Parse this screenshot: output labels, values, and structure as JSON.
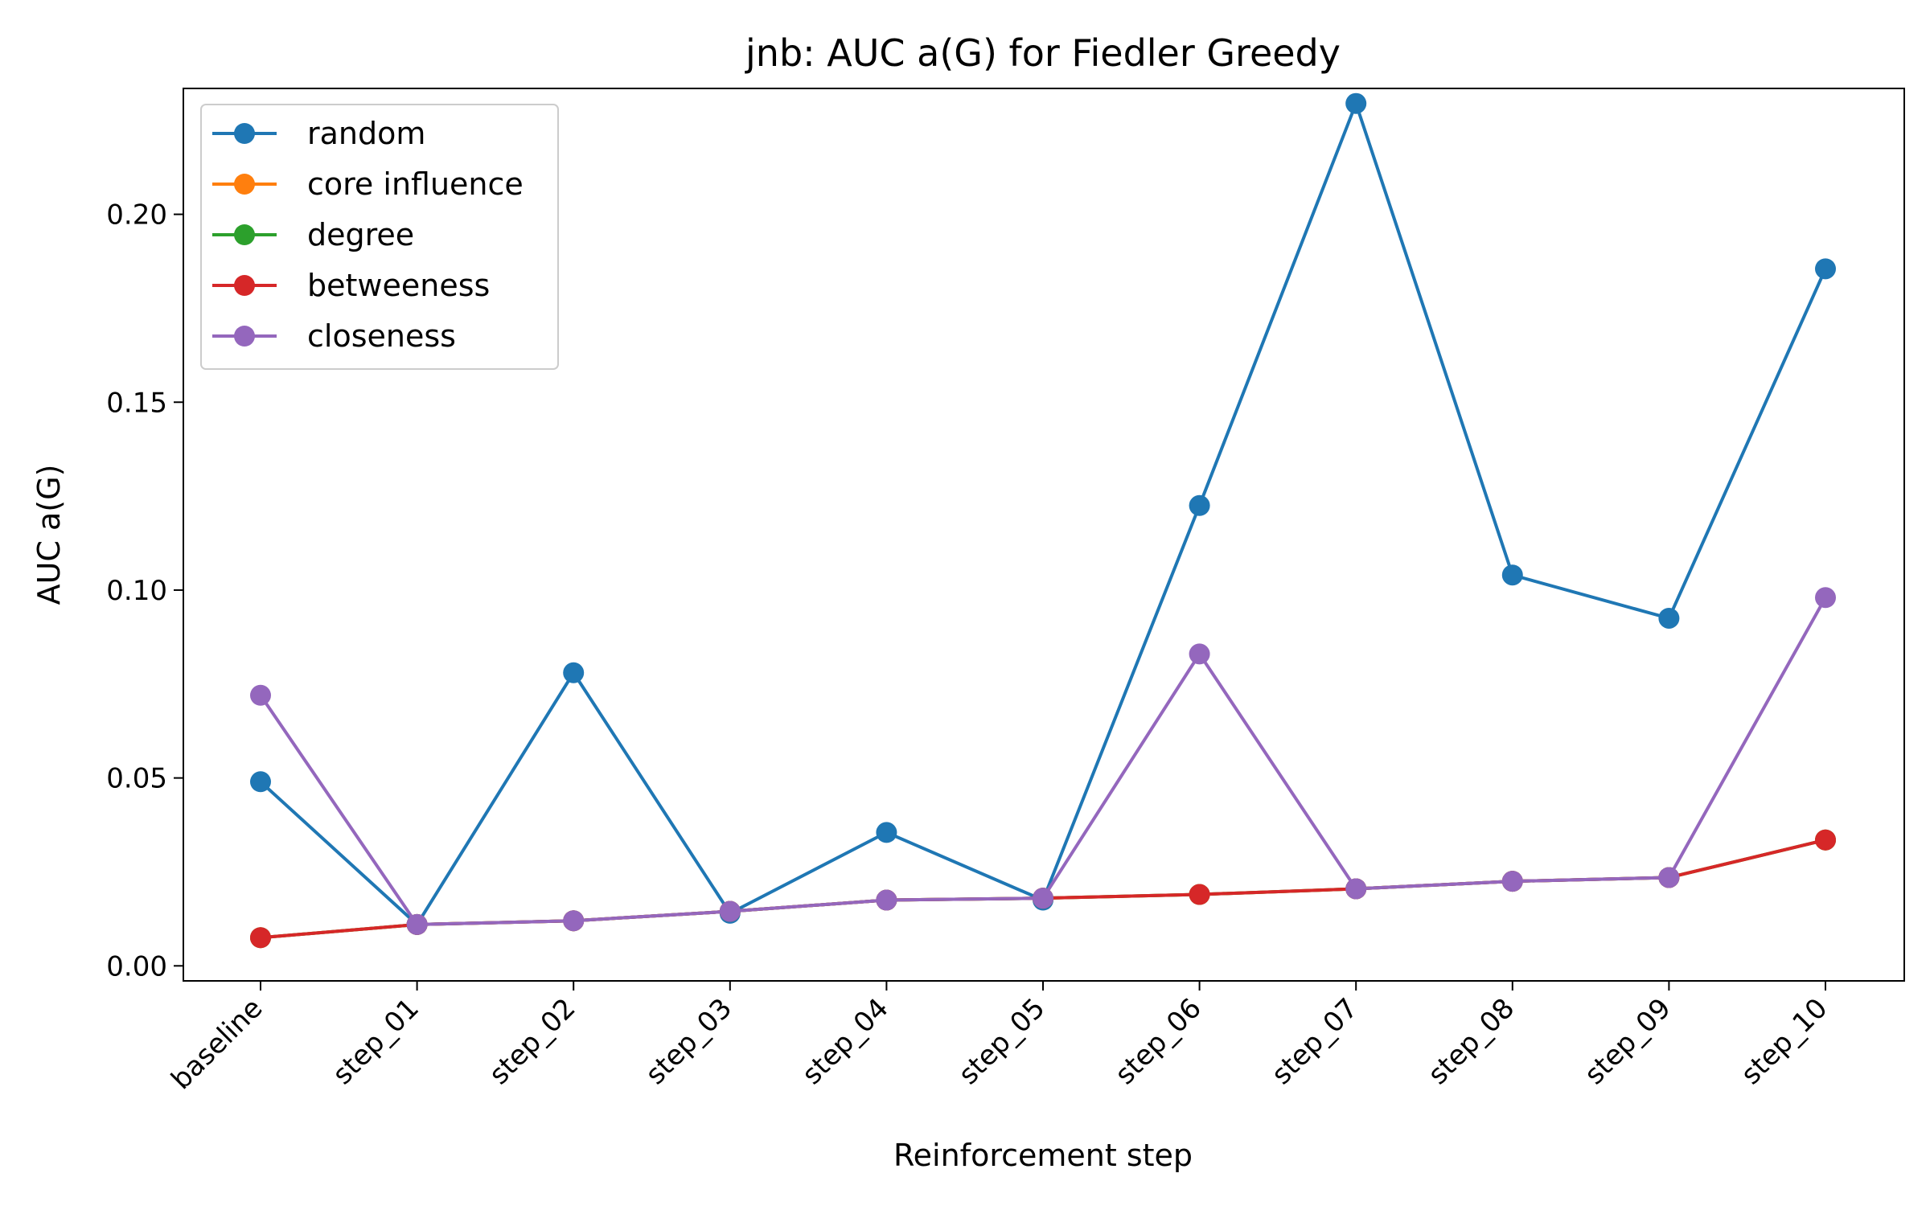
{
  "chart_data": {
    "type": "line",
    "title": "jnb: AUC a(G) for Fiedler Greedy",
    "xlabel": "Reinforcement step",
    "ylabel": "AUC a(G)",
    "categories": [
      "baseline",
      "step_01",
      "step_02",
      "step_03",
      "step_04",
      "step_05",
      "step_06",
      "step_07",
      "step_08",
      "step_09",
      "step_10"
    ],
    "ylim": [
      -0.004,
      0.2335
    ],
    "yticks": [
      0.0,
      0.05,
      0.1,
      0.15,
      0.2
    ],
    "ytick_labels": [
      "0.00",
      "0.05",
      "0.10",
      "0.15",
      "0.20"
    ],
    "grid": false,
    "legend_position": "top-left",
    "series": [
      {
        "name": "random",
        "color": "#1f77b4",
        "values": [
          0.049,
          0.011,
          0.078,
          0.014,
          0.0355,
          0.0175,
          0.1225,
          0.2295,
          0.104,
          0.0925,
          0.1855
        ]
      },
      {
        "name": "core influence",
        "color": "#ff7f0e",
        "values": [
          0.0075,
          0.011,
          0.012,
          0.0145,
          0.0175,
          0.018,
          0.019,
          0.0205,
          0.0225,
          0.0235,
          0.0335
        ]
      },
      {
        "name": "degree",
        "color": "#2ca02c",
        "values": [
          0.0075,
          0.011,
          0.012,
          0.0145,
          0.0175,
          0.018,
          0.019,
          0.0205,
          0.0225,
          0.0235,
          0.0335
        ]
      },
      {
        "name": "betweeness",
        "color": "#d62728",
        "values": [
          0.0075,
          0.011,
          0.012,
          0.0145,
          0.0175,
          0.018,
          0.019,
          0.0205,
          0.0225,
          0.0235,
          0.0335
        ]
      },
      {
        "name": "closeness",
        "color": "#9467bd",
        "values": [
          0.072,
          0.011,
          0.012,
          0.0145,
          0.0175,
          0.018,
          0.083,
          0.0205,
          0.0225,
          0.0235,
          0.098
        ]
      }
    ]
  }
}
